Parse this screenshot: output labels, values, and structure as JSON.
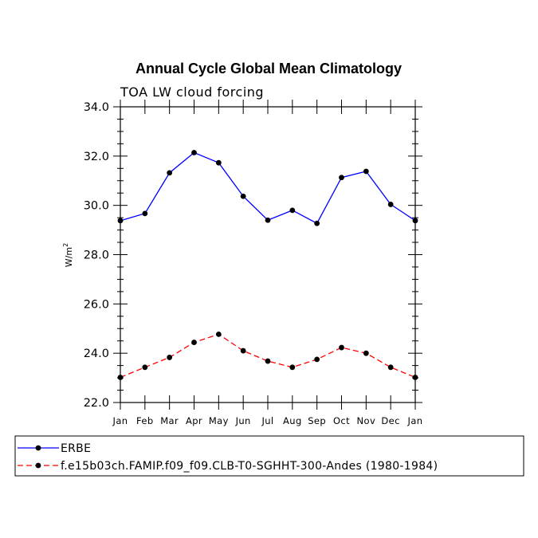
{
  "chart_data": {
    "type": "line",
    "title": "Annual Cycle Global Mean Climatology",
    "subtitle": "TOA LW cloud forcing",
    "xlabel": "",
    "ylabel": "W/m",
    "ylabel_superscript": "2",
    "categories": [
      "Jan",
      "Feb",
      "Mar",
      "Apr",
      "May",
      "Jun",
      "Jul",
      "Aug",
      "Sep",
      "Oct",
      "Nov",
      "Dec",
      "Jan"
    ],
    "ylim": [
      22.0,
      34.0
    ],
    "yticks": [
      "22.0",
      "24.0",
      "26.0",
      "28.0",
      "30.0",
      "32.0",
      "34.0"
    ],
    "grid": false,
    "legend_position": "bottom",
    "series": [
      {
        "name": "ERBE",
        "color": "#0000ff",
        "dash": "solid",
        "values": [
          29.38,
          29.67,
          31.32,
          32.14,
          31.73,
          30.37,
          29.4,
          29.8,
          29.27,
          31.13,
          31.38,
          30.04,
          29.38
        ]
      },
      {
        "name": "f.e15b03ch.FAMIP.f09_f09.CLB-T0-SGHHT-300-Andes (1980-1984)",
        "color": "#ff0000",
        "dash": "dashed",
        "values": [
          23.02,
          23.43,
          23.83,
          24.44,
          24.77,
          24.1,
          23.68,
          23.43,
          23.75,
          24.23,
          24.0,
          23.43,
          23.02
        ]
      }
    ]
  }
}
